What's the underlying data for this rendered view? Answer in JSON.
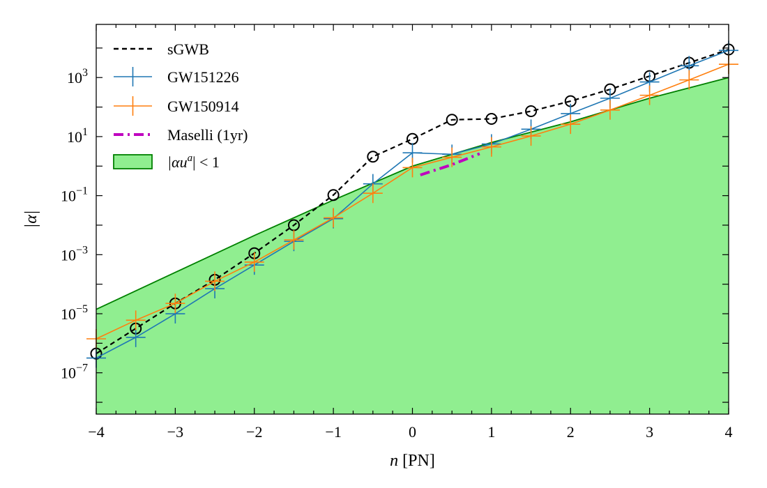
{
  "chart_data": {
    "type": "line",
    "xlabel_italic": "n",
    "xlabel_rest": " [PN]",
    "ylabel": "|α|",
    "xlim": [
      -4,
      4
    ],
    "ylim_log10": [
      -8.4,
      4.8
    ],
    "yscale": "log",
    "x_ticks": [
      {
        "value": -4,
        "label": "−4"
      },
      {
        "value": -3,
        "label": "−3"
      },
      {
        "value": -2,
        "label": "−2"
      },
      {
        "value": -1,
        "label": "−1"
      },
      {
        "value": 0,
        "label": "0"
      },
      {
        "value": 1,
        "label": "1"
      },
      {
        "value": 2,
        "label": "2"
      },
      {
        "value": 3,
        "label": "3"
      },
      {
        "value": 4,
        "label": "4"
      }
    ],
    "y_ticks": [
      {
        "exp": 3,
        "base": "10",
        "sup": "3"
      },
      {
        "exp": 1,
        "base": "10",
        "sup": "1"
      },
      {
        "exp": -1,
        "base": "10",
        "sup": "−1"
      },
      {
        "exp": -3,
        "base": "10",
        "sup": "−3"
      },
      {
        "exp": -5,
        "base": "10",
        "sup": "−5"
      },
      {
        "exp": -7,
        "base": "10",
        "sup": "−7"
      }
    ],
    "series": [
      {
        "name": "sGWB",
        "color": "#000000",
        "style": "dashed-circle",
        "x": [
          -4,
          -3.5,
          -3,
          -2.5,
          -2,
          -1.5,
          -1,
          -0.5,
          0,
          0.5,
          1,
          1.5,
          2,
          2.5,
          3,
          3.5,
          4
        ],
        "log10_y": [
          -6.35,
          -5.5,
          -4.65,
          -3.85,
          -2.95,
          -2.0,
          -0.98,
          0.32,
          0.92,
          1.57,
          1.6,
          1.86,
          2.2,
          2.6,
          3.05,
          3.5,
          3.95
        ]
      },
      {
        "name": "GW151226",
        "color": "#1f77b4",
        "style": "solid-plus",
        "x": [
          -4,
          -3.5,
          -3,
          -2.5,
          -2,
          -1.5,
          -1,
          -0.5,
          0,
          0.5,
          1,
          1.5,
          2,
          2.5,
          3,
          3.5,
          4
        ],
        "log10_y": [
          -6.5,
          -5.8,
          -5.0,
          -4.15,
          -3.35,
          -2.55,
          -1.78,
          -0.6,
          0.45,
          0.4,
          0.75,
          1.25,
          1.78,
          2.3,
          2.85,
          3.4,
          3.92
        ]
      },
      {
        "name": "GW150914",
        "color": "#ff7f0e",
        "style": "solid-plus",
        "x": [
          -4,
          -3.5,
          -3,
          -2.5,
          -2,
          -1.5,
          -1,
          -0.5,
          0,
          0.5,
          1,
          1.5,
          2,
          2.5,
          3,
          3.5,
          4
        ],
        "log10_y": [
          -5.85,
          -5.22,
          -4.65,
          -3.9,
          -3.25,
          -2.5,
          -1.75,
          -0.92,
          -0.05,
          0.3,
          0.65,
          1.02,
          1.42,
          1.9,
          2.4,
          2.92,
          3.45
        ]
      },
      {
        "name": "Maselli (1yr)",
        "color": "#bf00bf",
        "style": "dashdot",
        "x": [
          0.1,
          0.5,
          0.85
        ],
        "log10_y": [
          -0.3,
          0.05,
          0.42
        ]
      }
    ],
    "region": {
      "name": "|αu^a| < 1",
      "legend_prefix": "|αu",
      "legend_sup": "a",
      "legend_suffix": "| < 1",
      "fill": "#90ee90",
      "edge": "#008000",
      "x": [
        -4,
        -3,
        -2,
        -1,
        0,
        1,
        2,
        3,
        4
      ],
      "log10_y": [
        -4.85,
        -3.6,
        -2.35,
        -1.15,
        0.0,
        0.8,
        1.5,
        2.3,
        3.0
      ]
    },
    "legend_position": "upper-left"
  }
}
